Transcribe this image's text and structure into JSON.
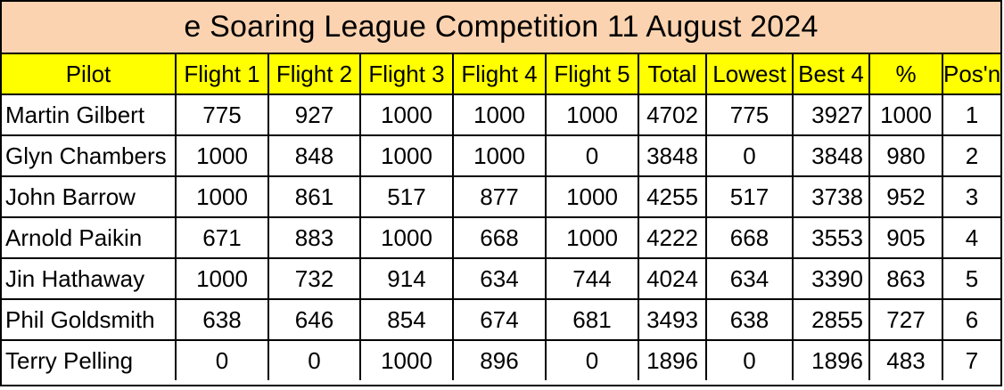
{
  "title": "e Soaring League Competition  11 August  2024",
  "columns": [
    "Pilot",
    "Flight 1",
    "Flight 2",
    "Flight 3",
    "Flight 4",
    "Flight 5",
    "Total",
    "Lowest",
    "Best 4",
    "%",
    "Pos'n"
  ],
  "rows": [
    {
      "pilot": "Martin Gilbert",
      "f1": "775",
      "f2": "927",
      "f3": "1000",
      "f4": "1000",
      "f5": "1000",
      "total": "4702",
      "lowest": "775",
      "best4": "3927",
      "pct": "1000",
      "pos": "1"
    },
    {
      "pilot": "Glyn Chambers",
      "f1": "1000",
      "f2": "848",
      "f3": "1000",
      "f4": "1000",
      "f5": "0",
      "total": "3848",
      "lowest": "0",
      "best4": "3848",
      "pct": "980",
      "pos": "2"
    },
    {
      "pilot": "John Barrow",
      "f1": "1000",
      "f2": "861",
      "f3": "517",
      "f4": "877",
      "f5": "1000",
      "total": "4255",
      "lowest": "517",
      "best4": "3738",
      "pct": "952",
      "pos": "3"
    },
    {
      "pilot": "Arnold Paikin",
      "f1": "671",
      "f2": "883",
      "f3": "1000",
      "f4": "668",
      "f5": "1000",
      "total": "4222",
      "lowest": "668",
      "best4": "3553",
      "pct": "905",
      "pos": "4"
    },
    {
      "pilot": "Jin Hathaway",
      "f1": "1000",
      "f2": "732",
      "f3": "914",
      "f4": "634",
      "f5": "744",
      "total": "4024",
      "lowest": "634",
      "best4": "3390",
      "pct": "863",
      "pos": "5"
    },
    {
      "pilot": "Phil Goldsmith",
      "f1": "638",
      "f2": "646",
      "f3": "854",
      "f4": "674",
      "f5": "681",
      "total": "3493",
      "lowest": "638",
      "best4": "2855",
      "pct": "727",
      "pos": "6"
    },
    {
      "pilot": "Terry Pelling",
      "f1": "0",
      "f2": "0",
      "f3": "1000",
      "f4": "896",
      "f5": "0",
      "total": "1896",
      "lowest": "0",
      "best4": "1896",
      "pct": "483",
      "pos": "7"
    }
  ],
  "colors": {
    "title_background": "#fbd3b0",
    "header_background": "#ffff00",
    "border": "#000000"
  }
}
